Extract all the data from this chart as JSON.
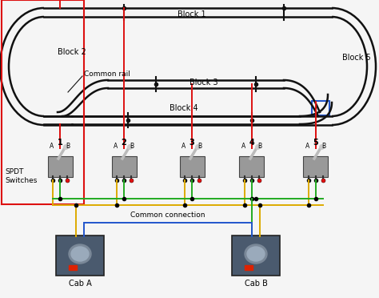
{
  "bg_color": "#f5f5f5",
  "track_color": "#111111",
  "red": "#dd1111",
  "green": "#22aa22",
  "yellow": "#ddaa00",
  "blue": "#2255cc",
  "switch_labels": [
    "1",
    "2",
    "3",
    "4",
    "5"
  ],
  "cab_labels": [
    "Cab A",
    "Cab B"
  ],
  "spdt_label": "SPDT\nSwitches",
  "common_rail_label": "Common rail",
  "common_conn_label": "Common connection",
  "block_labels": [
    "Block 1",
    "Block 2",
    "Block 3",
    "Block 4",
    "Block 5"
  ]
}
